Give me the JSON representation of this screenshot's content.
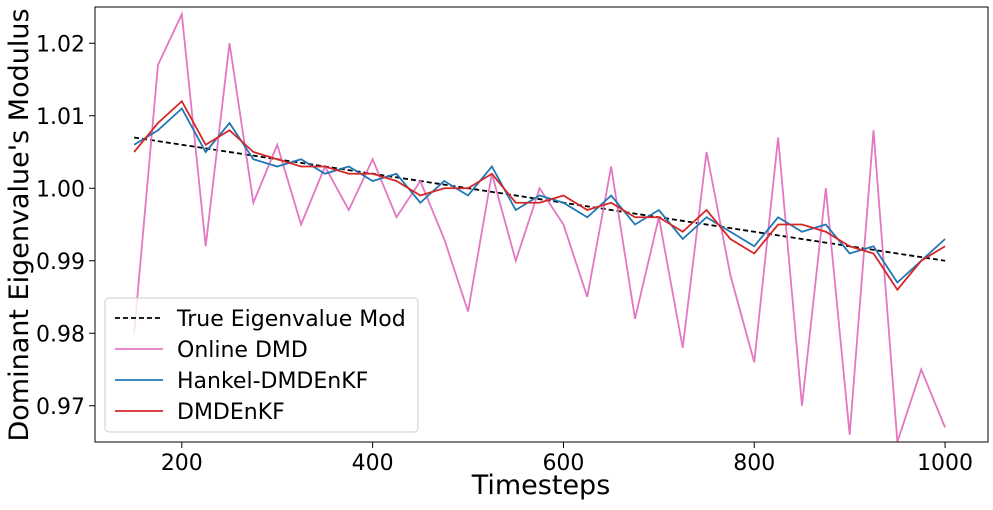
{
  "chart_data": {
    "type": "line",
    "x_label": "Timesteps",
    "y_label": "Dominant Eigenvalue's Modulus",
    "x": [
      150,
      175,
      200,
      225,
      250,
      275,
      300,
      325,
      350,
      375,
      400,
      425,
      450,
      475,
      500,
      525,
      550,
      575,
      600,
      625,
      650,
      675,
      700,
      725,
      750,
      775,
      800,
      825,
      850,
      875,
      900,
      925,
      950,
      975,
      1000
    ],
    "series": [
      {
        "name": "True Eigenvalue Mod",
        "color": "#000000",
        "linestyle": "dashed",
        "x": [
          150,
          1000
        ],
        "values": [
          1.007,
          0.99
        ]
      },
      {
        "name": "Online DMD",
        "color": "#e377c2",
        "linestyle": "solid",
        "values": [
          0.98,
          1.017,
          1.024,
          0.992,
          1.02,
          0.998,
          1.006,
          0.995,
          1.003,
          0.997,
          1.004,
          0.996,
          1.001,
          0.993,
          0.983,
          1.002,
          0.99,
          1.0,
          0.995,
          0.985,
          1.003,
          0.982,
          0.996,
          0.978,
          1.005,
          0.988,
          0.976,
          1.007,
          0.97,
          1.0,
          0.966,
          1.008,
          0.965,
          0.975,
          0.967
        ]
      },
      {
        "name": "Hankel-DMDEnKF",
        "color": "#1f77b4",
        "linestyle": "solid",
        "values": [
          1.006,
          1.008,
          1.011,
          1.005,
          1.009,
          1.004,
          1.003,
          1.004,
          1.002,
          1.003,
          1.001,
          1.002,
          0.998,
          1.001,
          0.999,
          1.003,
          0.997,
          0.999,
          0.998,
          0.996,
          0.999,
          0.995,
          0.997,
          0.993,
          0.996,
          0.994,
          0.992,
          0.996,
          0.994,
          0.995,
          0.991,
          0.992,
          0.987,
          0.99,
          0.993
        ]
      },
      {
        "name": "DMDEnKF",
        "color": "#d62728",
        "linestyle": "solid",
        "values": [
          1.005,
          1.009,
          1.012,
          1.006,
          1.008,
          1.005,
          1.004,
          1.003,
          1.003,
          1.002,
          1.002,
          1.001,
          0.999,
          1.0,
          1.0,
          1.002,
          0.998,
          0.998,
          0.999,
          0.997,
          0.998,
          0.996,
          0.996,
          0.994,
          0.997,
          0.993,
          0.991,
          0.995,
          0.995,
          0.994,
          0.992,
          0.991,
          0.986,
          0.99,
          0.992
        ]
      }
    ],
    "xlim": [
      109,
      1045
    ],
    "ylim": [
      0.965,
      1.025
    ],
    "xticks": [
      200,
      400,
      600,
      800,
      1000
    ],
    "yticks": [
      0.97,
      0.98,
      0.99,
      {
        "value": 1,
        "label": "1.00"
      },
      1.01,
      1.02
    ],
    "legend": "lower left"
  }
}
